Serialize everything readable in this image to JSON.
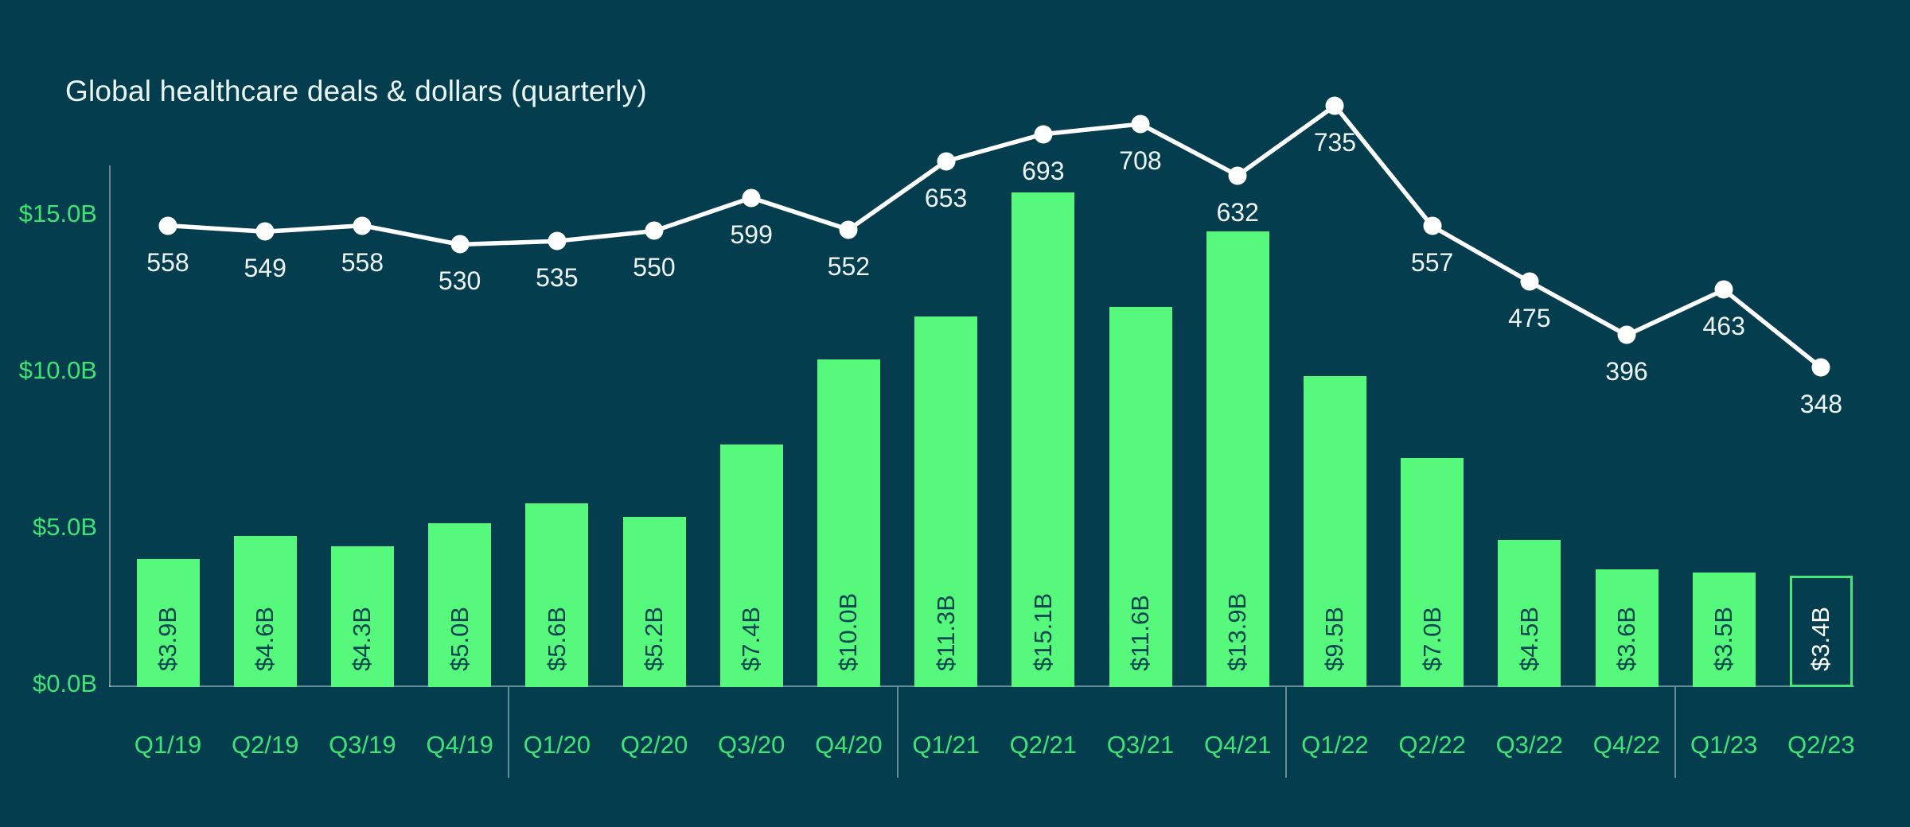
{
  "title": "Global healthcare deals & dollars (quarterly)",
  "colors": {
    "background": "#043E4E",
    "title": "#EAF4F2",
    "bar_fill": "#57F97D",
    "bar_label": "#05454F",
    "outlined_bar_border": "#45E878",
    "outlined_bar_label": "#FFFFFF",
    "line": "#FFFFFF",
    "point_label": "#EDF4F3",
    "axis_label": "#3FE274",
    "axis_line": "rgba(220,235,238,0.45)"
  },
  "chart_data": {
    "type": "combo",
    "categories": [
      "Q1/19",
      "Q2/19",
      "Q3/19",
      "Q4/19",
      "Q1/20",
      "Q2/20",
      "Q3/20",
      "Q4/20",
      "Q1/21",
      "Q2/21",
      "Q3/21",
      "Q4/21",
      "Q1/22",
      "Q2/22",
      "Q3/22",
      "Q4/22",
      "Q1/23",
      "Q2/23"
    ],
    "series": [
      {
        "name": "deal_dollars",
        "type": "bar",
        "values": [
          3.9,
          4.6,
          4.3,
          5.0,
          5.6,
          5.2,
          7.4,
          10.0,
          11.3,
          15.1,
          11.6,
          13.9,
          9.5,
          7.0,
          4.5,
          3.6,
          3.5,
          3.4
        ],
        "labels": [
          "$3.9B",
          "$4.6B",
          "$4.3B",
          "$5.0B",
          "$5.6B",
          "$5.2B",
          "$7.4B",
          "$10.0B",
          "$11.3B",
          "$15.1B",
          "$11.6B",
          "$13.9B",
          "$9.5B",
          "$7.0B",
          "$4.5B",
          "$3.6B",
          "$3.5B",
          "$3.4B"
        ],
        "last_bar_style": "outlined"
      },
      {
        "name": "deal_count",
        "type": "line",
        "values": [
          558,
          549,
          558,
          530,
          535,
          550,
          599,
          552,
          653,
          693,
          708,
          632,
          735,
          557,
          475,
          396,
          463,
          348
        ],
        "labels": [
          "558",
          "549",
          "558",
          "530",
          "535",
          "550",
          "599",
          "552",
          "653",
          "693",
          "708",
          "632",
          "735",
          "557",
          "475",
          "396",
          "463",
          "348"
        ]
      }
    ],
    "y_axis": {
      "ticks": [
        "$0.0B",
        "$5.0B",
        "$10.0B",
        "$15.0B"
      ],
      "tick_values": [
        0,
        5,
        10,
        15
      ],
      "ylim": [
        0,
        17
      ]
    },
    "legend": "none",
    "grid": "off",
    "year_separators_after": [
      3,
      7,
      11,
      15
    ]
  }
}
